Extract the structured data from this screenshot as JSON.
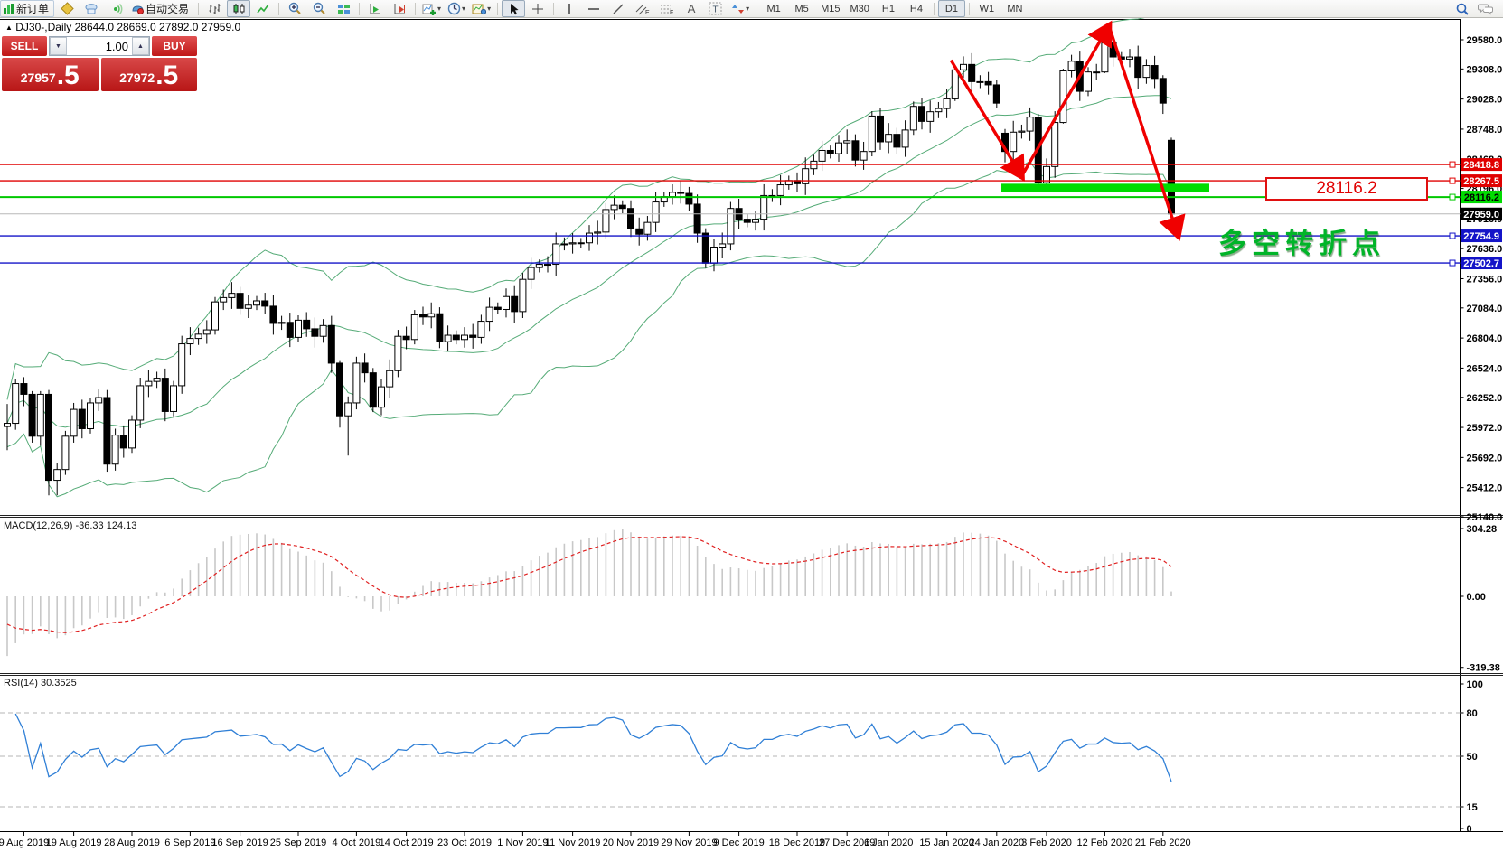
{
  "toolbar": {
    "new_order_label": "新订单",
    "autotrading_label": "自动交易",
    "channel_badge": "E",
    "fibo_badge": "F",
    "text_tool_label": "A",
    "textlabel_tool_label": "T",
    "timeframes": [
      "M1",
      "M5",
      "M15",
      "M30",
      "H1",
      "H4",
      "D1",
      "W1",
      "MN"
    ],
    "active_timeframe": "D1"
  },
  "chart": {
    "title_symbol": "DJ30-,Daily",
    "title_ohlc": "28644.0 28669.0 27892.0 27959.0"
  },
  "trade_panel": {
    "sell_label": "SELL",
    "buy_label": "BUY",
    "volume": "1.00",
    "sell_price_main": "27957",
    "sell_price_pips": ".5",
    "buy_price_main": "27972",
    "buy_price_pips": ".5"
  },
  "indicators": {
    "macd_label": "MACD(12,26,9) -36.33 124.13",
    "rsi_label": "RSI(14) 30.3525"
  },
  "annotations": {
    "level_label": "28116.2",
    "turning_point": "多空转折点"
  },
  "chart_data": [
    {
      "type": "candlestick",
      "symbol": "DJ30-",
      "timeframe": "Daily",
      "last_ohlc": {
        "open": 28644.0,
        "high": 28669.0,
        "low": 27892.0,
        "close": 27959.0
      },
      "y_ticks": [
        29580.0,
        29308.0,
        29028.0,
        28748.0,
        28468.0,
        28196.0,
        27916.0,
        27636.0,
        27356.0,
        27084.0,
        26804.0,
        26524.0,
        26252.0,
        25972.0,
        25692.0,
        25412.0,
        25140.0
      ],
      "x_tick_labels": [
        "9 Aug 2019",
        "19 Aug 2019",
        "28 Aug 2019",
        "6 Sep 2019",
        "16 Sep 2019",
        "25 Sep 2019",
        "4 Oct 2019",
        "14 Oct 2019",
        "23 Oct 2019",
        "1 Nov 2019",
        "11 Nov 2019",
        "20 Nov 2019",
        "29 Nov 2019",
        "9 Dec 2019",
        "18 Dec 2019",
        "27 Dec 2019",
        "6 Jan 2020",
        "15 Jan 2020",
        "24 Jan 2020",
        "3 Feb 2020",
        "12 Feb 2020",
        "21 Feb 2020"
      ],
      "x_tick_indices": [
        2,
        8,
        15,
        22,
        28,
        35,
        42,
        48,
        55,
        62,
        68,
        75,
        82,
        88,
        95,
        101,
        106,
        113,
        119,
        125,
        132,
        139
      ],
      "bollinger": {
        "period": 20,
        "deviation": 2,
        "color": "#55ab77"
      },
      "horizontal_lines": [
        {
          "price": 28418.8,
          "color": "#e00000",
          "label_bg": "#e00000",
          "label_fg": "#ffffff"
        },
        {
          "price": 28267.5,
          "color": "#e00000",
          "label_bg": "#e00000",
          "label_fg": "#ffffff"
        },
        {
          "price": 28116.2,
          "color": "#00c800",
          "label_bg": "#00dc00",
          "label_fg": "#000000"
        },
        {
          "price": 27754.9,
          "color": "#1414c8",
          "label_bg": "#1414c8",
          "label_fg": "#ffffff"
        },
        {
          "price": 27502.7,
          "color": "#1414c8",
          "label_bg": "#1414c8",
          "label_fg": "#ffffff"
        }
      ],
      "current_price": {
        "price": 27959.0,
        "line_color": "#b8b8b8",
        "label_bg": "#000000",
        "label_fg": "#ffffff"
      },
      "highlight_bar": {
        "price_from": 28160,
        "price_to": 28240,
        "index_from": 120,
        "index_to": 145,
        "color": "#00dc00"
      },
      "trend_arrows": {
        "color": "#f00000",
        "segments": [
          {
            "from": [
              113.5,
              29390
            ],
            "to": [
              122,
              28310
            ]
          },
          {
            "from": [
              122,
              28310
            ],
            "to": [
              132.5,
              29710
            ]
          },
          {
            "from": [
              132.5,
              29710
            ],
            "to": [
              140.8,
              27760
            ]
          }
        ]
      },
      "candles": [
        [
          25980,
          26190,
          25760,
          26010
        ],
        [
          26010,
          26420,
          25950,
          26380
        ],
        [
          26380,
          26440,
          26170,
          26280
        ],
        [
          26280,
          26310,
          25830,
          25890
        ],
        [
          25890,
          26310,
          25800,
          26280
        ],
        [
          26280,
          26320,
          25340,
          25480
        ],
        [
          25480,
          25640,
          25340,
          25580
        ],
        [
          25580,
          25940,
          25530,
          25890
        ],
        [
          25890,
          26200,
          25830,
          26140
        ],
        [
          26140,
          26230,
          25870,
          25960
        ],
        [
          25960,
          26245,
          25915,
          26200
        ],
        [
          26200,
          26325,
          26125,
          26250
        ],
        [
          26250,
          26320,
          25560,
          25630
        ],
        [
          25630,
          25960,
          25570,
          25900
        ],
        [
          25900,
          25990,
          25690,
          25780
        ],
        [
          25780,
          26085,
          25735,
          26040
        ],
        [
          26040,
          26435,
          25965,
          26360
        ],
        [
          26360,
          26505,
          26255,
          26400
        ],
        [
          26400,
          26490,
          26340,
          26430
        ],
        [
          26430,
          26520,
          26030,
          26120
        ],
        [
          26120,
          26405,
          26075,
          26360
        ],
        [
          26360,
          26825,
          26285,
          26750
        ],
        [
          26750,
          26905,
          26645,
          26800
        ],
        [
          26800,
          26900,
          26740,
          26840
        ],
        [
          26840,
          26970,
          26750,
          26880
        ],
        [
          26880,
          27185,
          26835,
          27140
        ],
        [
          27140,
          27255,
          27065,
          27180
        ],
        [
          27180,
          27325,
          27075,
          27220
        ],
        [
          27220,
          27280,
          27020,
          27080
        ],
        [
          27080,
          27200,
          26990,
          27110
        ],
        [
          27110,
          27195,
          27065,
          27150
        ],
        [
          27150,
          27225,
          27025,
          27100
        ],
        [
          27100,
          27205,
          26835,
          26940
        ],
        [
          26940,
          27010,
          26880,
          26950
        ],
        [
          26950,
          27040,
          26720,
          26810
        ],
        [
          26810,
          27015,
          26765,
          26970
        ],
        [
          26970,
          27045,
          26815,
          26890
        ],
        [
          26890,
          26995,
          26715,
          26820
        ],
        [
          26820,
          26980,
          26760,
          26920
        ],
        [
          26920,
          27010,
          26480,
          26570
        ],
        [
          26570,
          26590,
          25970,
          26080
        ],
        [
          26080,
          26260,
          25710,
          26200
        ],
        [
          26200,
          26630,
          26140,
          26570
        ],
        [
          26570,
          26660,
          26390,
          26480
        ],
        [
          26480,
          26525,
          26115,
          26160
        ],
        [
          26160,
          26425,
          26085,
          26350
        ],
        [
          26350,
          26605,
          26245,
          26500
        ],
        [
          26500,
          26880,
          26440,
          26820
        ],
        [
          26820,
          26910,
          26700,
          26790
        ],
        [
          26790,
          27065,
          26745,
          27020
        ],
        [
          27020,
          27095,
          26925,
          27000
        ],
        [
          27000,
          27135,
          26895,
          27030
        ],
        [
          27030,
          27090,
          26710,
          26770
        ],
        [
          26770,
          26920,
          26680,
          26830
        ],
        [
          26830,
          26875,
          26745,
          26790
        ],
        [
          26790,
          26905,
          26715,
          26830
        ],
        [
          26830,
          26935,
          26705,
          26810
        ],
        [
          26810,
          27020,
          26750,
          26960
        ],
        [
          26960,
          27180,
          26870,
          27090
        ],
        [
          27090,
          27135,
          27025,
          27070
        ],
        [
          27070,
          27265,
          26995,
          27190
        ],
        [
          27190,
          27295,
          26945,
          27050
        ],
        [
          27050,
          27410,
          26990,
          27350
        ],
        [
          27350,
          27550,
          27260,
          27460
        ],
        [
          27460,
          27535,
          27415,
          27490
        ],
        [
          27490,
          27565,
          27415,
          27490
        ],
        [
          27490,
          27785,
          27385,
          27680
        ],
        [
          27680,
          27740,
          27620,
          27680
        ],
        [
          27680,
          27780,
          27590,
          27690
        ],
        [
          27690,
          27735,
          27645,
          27690
        ],
        [
          27690,
          27855,
          27615,
          27780
        ],
        [
          27780,
          27895,
          27675,
          27790
        ],
        [
          27790,
          28060,
          27730,
          28000
        ],
        [
          28000,
          28130,
          27910,
          28040
        ],
        [
          28040,
          28085,
          27965,
          28010
        ],
        [
          28010,
          28085,
          27745,
          27820
        ],
        [
          27820,
          27925,
          27665,
          27770
        ],
        [
          27770,
          27940,
          27710,
          27880
        ],
        [
          27880,
          28160,
          27790,
          28070
        ],
        [
          28070,
          28165,
          28025,
          28120
        ],
        [
          28120,
          28235,
          28045,
          28160
        ],
        [
          28160,
          28265,
          28055,
          28150
        ],
        [
          28150,
          28210,
          27990,
          28050
        ],
        [
          28050,
          28140,
          27690,
          27780
        ],
        [
          27780,
          27825,
          27455,
          27500
        ],
        [
          27500,
          27725,
          27425,
          27650
        ],
        [
          27650,
          27785,
          27545,
          27680
        ],
        [
          27680,
          28070,
          27620,
          28010
        ],
        [
          28010,
          28100,
          27820,
          27910
        ],
        [
          27910,
          27955,
          27835,
          27880
        ],
        [
          27880,
          27985,
          27805,
          27910
        ],
        [
          27910,
          28235,
          27805,
          28130
        ],
        [
          28130,
          28190,
          28070,
          28130
        ],
        [
          28130,
          28320,
          28040,
          28230
        ],
        [
          28230,
          28315,
          28185,
          28270
        ],
        [
          28270,
          28345,
          28165,
          28240
        ],
        [
          28240,
          28485,
          28135,
          28380
        ],
        [
          28380,
          28510,
          28320,
          28450
        ],
        [
          28450,
          28640,
          28360,
          28550
        ],
        [
          28550,
          28595,
          28475,
          28520
        ],
        [
          28520,
          28695,
          28445,
          28620
        ],
        [
          28620,
          28745,
          28515,
          28640
        ],
        [
          28640,
          28700,
          28400,
          28460
        ],
        [
          28460,
          28630,
          28370,
          28540
        ],
        [
          28540,
          28915,
          28495,
          28870
        ],
        [
          28870,
          28945,
          28555,
          28630
        ],
        [
          28630,
          28805,
          28525,
          28700
        ],
        [
          28700,
          28760,
          28520,
          28580
        ],
        [
          28580,
          28830,
          28490,
          28740
        ],
        [
          28740,
          29005,
          28695,
          28960
        ],
        [
          28960,
          29035,
          28745,
          28820
        ],
        [
          28820,
          29015,
          28715,
          28910
        ],
        [
          28910,
          29000,
          28850,
          28940
        ],
        [
          28940,
          29120,
          28850,
          29030
        ],
        [
          29030,
          29320,
          29010,
          29300
        ],
        [
          29300,
          29425,
          29225,
          29350
        ],
        [
          29350,
          29455,
          29085,
          29190
        ],
        [
          29190,
          29250,
          29130,
          29190
        ],
        [
          29190,
          29280,
          29070,
          29160
        ],
        [
          29160,
          29205,
          28945,
          28990
        ],
        [
          28710,
          28750,
          28440,
          28540
        ],
        [
          28540,
          28825,
          28435,
          28720
        ],
        [
          28720,
          28790,
          28660,
          28730
        ],
        [
          28730,
          28950,
          28640,
          28860
        ],
        [
          28860,
          28890,
          28170,
          28250
        ],
        [
          28250,
          28475,
          28175,
          28400
        ],
        [
          28400,
          28915,
          28295,
          28810
        ],
        [
          28810,
          29310,
          28800,
          29290
        ],
        [
          29290,
          29440,
          29230,
          29380
        ],
        [
          29380,
          29470,
          29010,
          29100
        ],
        [
          29100,
          29325,
          29055,
          29280
        ],
        [
          29280,
          29355,
          29205,
          29280
        ],
        [
          29280,
          29590,
          29270,
          29550
        ],
        [
          29550,
          29570,
          29330,
          29420
        ],
        [
          29420,
          29465,
          29355,
          29400
        ],
        [
          29400,
          29495,
          29325,
          29420
        ],
        [
          29420,
          29525,
          29125,
          29230
        ],
        [
          29230,
          29400,
          29170,
          29340
        ],
        [
          29340,
          29430,
          29130,
          29220
        ],
        [
          29220,
          29250,
          28890,
          28990
        ],
        [
          28644,
          28669,
          27892,
          27959
        ]
      ]
    },
    {
      "type": "macd-histogram",
      "label": "MACD(12,26,9)",
      "params": [
        12,
        26,
        9
      ],
      "current_values": [
        -36.33,
        124.13
      ],
      "y_ticks": [
        304.28,
        0.0,
        -319.38
      ],
      "histogram_color": "#c8c8c8",
      "signal_color": "#e02020"
    },
    {
      "type": "rsi-line",
      "label": "RSI(14)",
      "period": 14,
      "current_value": 30.3525,
      "y_ticks": [
        100,
        80,
        50,
        15,
        0
      ],
      "grid_levels": [
        80,
        50,
        15
      ],
      "line_color": "#2f7fd6",
      "grid_color": "#b4b4b4"
    }
  ]
}
